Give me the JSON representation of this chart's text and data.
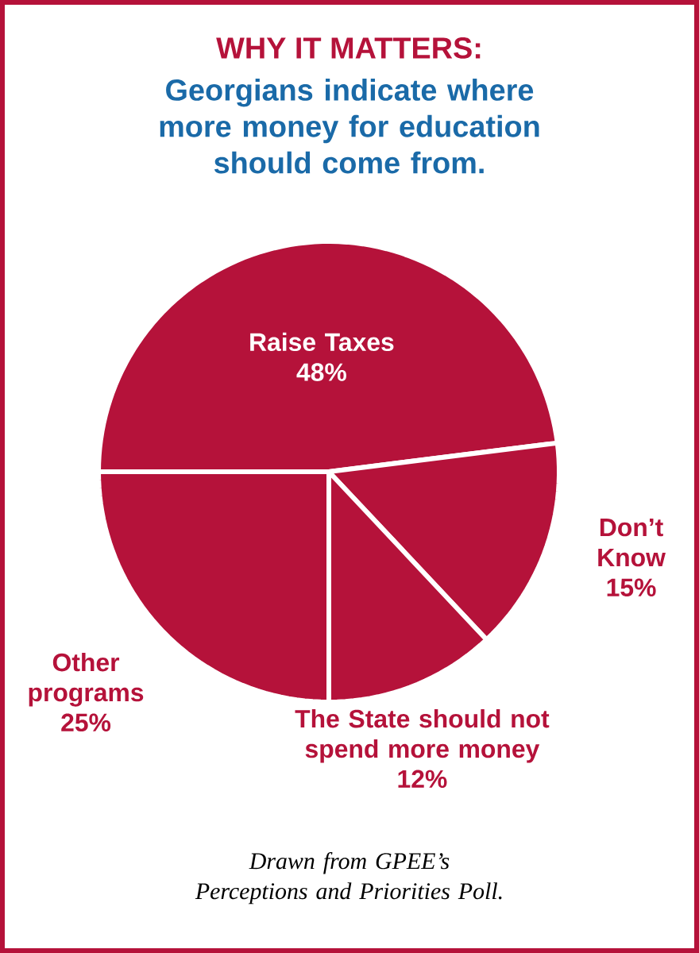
{
  "chart_data": {
    "type": "pie",
    "title": "WHY IT MATTERS:",
    "subtitle": "Georgians indicate where more money for education should come from.",
    "categories": [
      "Raise Taxes",
      "Don’t Know",
      "The State should not spend more money",
      "Other programs"
    ],
    "values": [
      48,
      15,
      12,
      25
    ],
    "colors": [
      "#b5123a",
      "#b5123a",
      "#b5123a",
      "#b5123a"
    ],
    "value_labels": [
      "48%",
      "15%",
      "12%",
      "25%"
    ],
    "annotations": [
      "Drawn from GPEE’s Perceptions and Priorities Poll."
    ]
  }
}
